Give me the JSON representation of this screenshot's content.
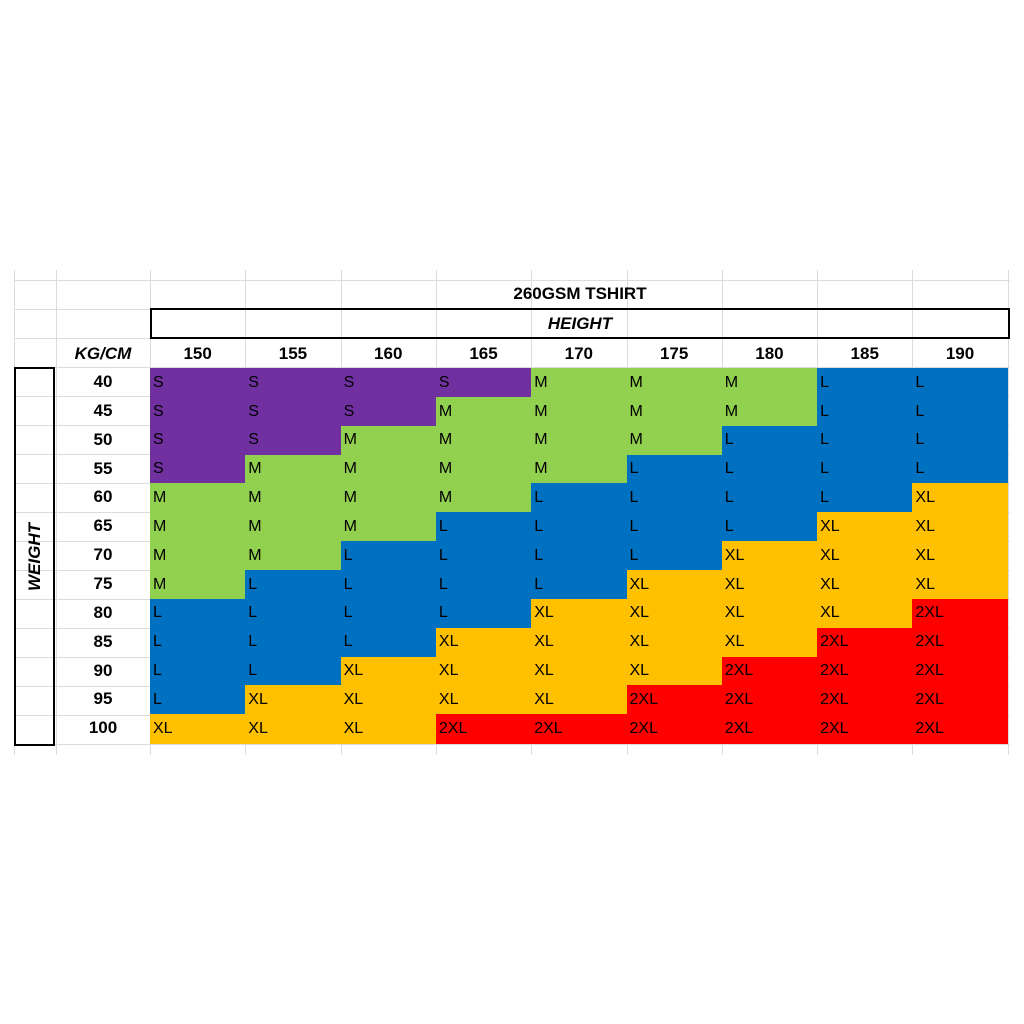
{
  "title": "260GSM TSHIRT",
  "column_group_label": "HEIGHT",
  "row_group_label": "WEIGHT",
  "corner_label": "KG/CM",
  "heights": [
    "150",
    "155",
    "160",
    "165",
    "170",
    "175",
    "180",
    "185",
    "190"
  ],
  "weights": [
    "40",
    "45",
    "50",
    "55",
    "60",
    "65",
    "70",
    "75",
    "80",
    "85",
    "90",
    "95",
    "100"
  ],
  "size_colors": {
    "S": "#7030a0",
    "M": "#92d050",
    "L": "#0070c0",
    "XL": "#ffc000",
    "2XL": "#ff0000"
  },
  "sizes": [
    [
      "S",
      "S",
      "S",
      "S",
      "M",
      "M",
      "M",
      "L",
      "L"
    ],
    [
      "S",
      "S",
      "S",
      "M",
      "M",
      "M",
      "M",
      "L",
      "L"
    ],
    [
      "S",
      "S",
      "M",
      "M",
      "M",
      "M",
      "L",
      "L",
      "L"
    ],
    [
      "S",
      "M",
      "M",
      "M",
      "M",
      "L",
      "L",
      "L",
      "L"
    ],
    [
      "M",
      "M",
      "M",
      "M",
      "L",
      "L",
      "L",
      "L",
      "XL"
    ],
    [
      "M",
      "M",
      "M",
      "L",
      "L",
      "L",
      "L",
      "XL",
      "XL"
    ],
    [
      "M",
      "M",
      "L",
      "L",
      "L",
      "L",
      "XL",
      "XL",
      "XL"
    ],
    [
      "M",
      "L",
      "L",
      "L",
      "L",
      "XL",
      "XL",
      "XL",
      "XL"
    ],
    [
      "L",
      "L",
      "L",
      "L",
      "XL",
      "XL",
      "XL",
      "XL",
      "2XL"
    ],
    [
      "L",
      "L",
      "L",
      "XL",
      "XL",
      "XL",
      "XL",
      "2XL",
      "2XL"
    ],
    [
      "L",
      "L",
      "XL",
      "XL",
      "XL",
      "XL",
      "2XL",
      "2XL",
      "2XL"
    ],
    [
      "L",
      "XL",
      "XL",
      "XL",
      "XL",
      "2XL",
      "2XL",
      "2XL",
      "2XL"
    ],
    [
      "XL",
      "XL",
      "XL",
      "2XL",
      "2XL",
      "2XL",
      "2XL",
      "2XL",
      "2XL"
    ]
  ]
}
